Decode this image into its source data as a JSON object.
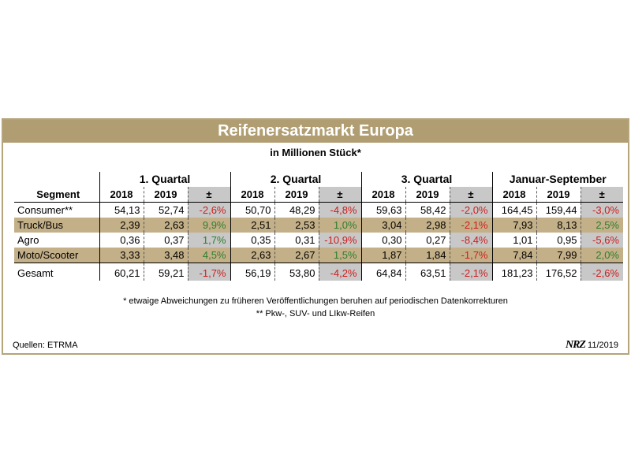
{
  "title": "Reifenersatzmarkt Europa",
  "subtitle": "in Millionen Stück*",
  "chart_data": {
    "type": "table",
    "groups": [
      "1. Quartal",
      "2. Quartal",
      "3. Quartal",
      "Januar-September"
    ],
    "columns": [
      "Segment",
      "2018",
      "2019",
      "±",
      "2018",
      "2019",
      "±",
      "2018",
      "2019",
      "±",
      "2018",
      "2019",
      "±"
    ],
    "rows": [
      {
        "segment": "Consumer**",
        "cells": [
          "54,13",
          "52,74",
          "-2,6%",
          "50,70",
          "48,29",
          "-4,8%",
          "59,63",
          "58,42",
          "-2,0%",
          "164,45",
          "159,44",
          "-3,0%"
        ]
      },
      {
        "segment": "Truck/Bus",
        "cells": [
          "2,39",
          "2,63",
          "9,9%",
          "2,51",
          "2,53",
          "1,0%",
          "3,04",
          "2,98",
          "-2,1%",
          "7,93",
          "8,13",
          "2,5%"
        ]
      },
      {
        "segment": "Agro",
        "cells": [
          "0,36",
          "0,37",
          "1,7%",
          "0,35",
          "0,31",
          "-10,9%",
          "0,30",
          "0,27",
          "-8,4%",
          "1,01",
          "0,95",
          "-5,6%"
        ]
      },
      {
        "segment": "Moto/Scooter",
        "cells": [
          "3,33",
          "3,48",
          "4,5%",
          "2,63",
          "2,67",
          "1,5%",
          "1,87",
          "1,84",
          "-1,7%",
          "7,84",
          "7,99",
          "2,0%"
        ]
      },
      {
        "segment": "Gesamt",
        "cells": [
          "60,21",
          "59,21",
          "-1,7%",
          "56,19",
          "53,80",
          "-4,2%",
          "64,84",
          "63,51",
          "-2,1%",
          "181,23",
          "176,52",
          "-2,6%"
        ]
      }
    ]
  },
  "footnotes": [
    "* etwaige Abweichungen zu früheren Veröffentlichungen beruhen auf periodischen Datenkorrekturen",
    "** Pkw-, SUV- und LIkw-Reifen"
  ],
  "source": "Quellen: ETRMA",
  "brand": {
    "logo": "NRZ",
    "date": "11/2019"
  },
  "colors": {
    "accent": "#b09e72",
    "row_shade": "#c4b088",
    "pct_shade": "#c8c8c8",
    "positive": "#2e7d2e",
    "negative": "#cc1e1e"
  }
}
